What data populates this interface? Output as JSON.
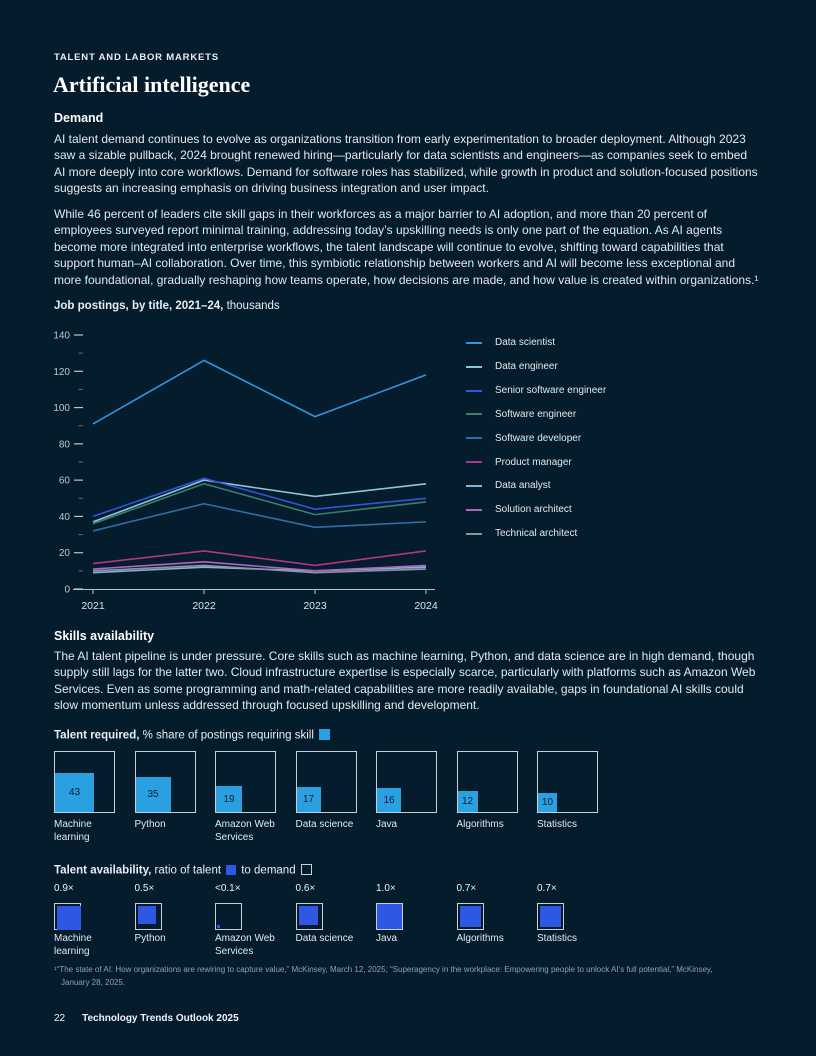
{
  "page": {
    "eyebrow": "TALENT AND LABOR MARKETS",
    "title": "Artificial intelligence",
    "footnote": "¹“The state of AI: How organizations are rewiring to capture value,” McKinsey, March 12, 2025; “Superagency in the workplace: Empowering people to unlock AI’s full potential,” McKinsey, January 28, 2025.",
    "footer_page": "22",
    "footer_title": "Technology Trends Outlook 2025"
  },
  "demand": {
    "heading": "Demand",
    "p1": "AI talent demand continues to evolve as organizations transition from early experimentation to broader deployment. Although 2023 saw a sizable pullback, 2024 brought renewed hiring—particularly for data scientists and engineers—as companies seek to embed AI more deeply into core workflows. Demand for software roles has stabilized, while growth in product and solution-focused positions suggests an increasing emphasis on driving business integration and user impact.",
    "p2": "While 46 percent of leaders cite skill gaps in their workforces as a major barrier to AI adoption, and more than 20 percent of employees surveyed report minimal training, addressing today’s upskilling needs is only one part of the equation. As AI agents become more integrated into enterprise workflows, the talent landscape will continue to evolve, shifting toward capabilities that support human–AI collaboration. Over time, this symbiotic relationship between workers and AI will become less exceptional and more foundational, gradually reshaping how teams operate, how decisions are made, and how value is created within organizations.¹"
  },
  "skills": {
    "heading": "Skills availability",
    "p": "The AI talent pipeline is under pressure. Core skills such as machine learning, Python, and data science are in high demand, though supply still lags for the latter two. Cloud infrastructure expertise is especially scarce, particularly with platforms such as Amazon Web Services. Even as some programming and math-related capabilities are more readily available, gaps in foundational AI skills could slow momentum unless addressed through focused upskilling and development."
  },
  "required_header": {
    "bold": "Talent required,",
    "rest": " % share of postings requiring skill"
  },
  "availability_header": {
    "bold": "Talent availability,",
    "mid": " ratio of talent",
    "end": " to demand"
  },
  "chart_data": [
    {
      "type": "line",
      "title_bold": "Job postings, by title, 2021–24,",
      "title_rest": " thousands",
      "x": [
        2021,
        2022,
        2023,
        2024
      ],
      "ylim": [
        0,
        140
      ],
      "y_major_ticks": [
        0,
        20,
        40,
        60,
        80,
        100,
        120,
        140
      ],
      "grid": false,
      "legend_position": "right",
      "series": [
        {
          "name": "Data scientist",
          "color": "#2E97E4",
          "values": [
            91,
            126,
            95,
            118
          ]
        },
        {
          "name": "Data engineer",
          "color": "#8FC6D6",
          "values": [
            37,
            60,
            51,
            58
          ]
        },
        {
          "name": "Senior software engineer",
          "color": "#2F55DE",
          "values": [
            40,
            61,
            44,
            50
          ]
        },
        {
          "name": "Software engineer",
          "color": "#37806F",
          "values": [
            36,
            58,
            41,
            48
          ]
        },
        {
          "name": "Software developer",
          "color": "#2E6FA8",
          "values": [
            32,
            47,
            34,
            37
          ]
        },
        {
          "name": "Product manager",
          "color": "#B13687",
          "values": [
            14,
            21,
            13,
            21
          ]
        },
        {
          "name": "Data analyst",
          "color": "#7FB4DB",
          "values": [
            9,
            12,
            10,
            12
          ]
        },
        {
          "name": "Solution architect",
          "color": "#B263C6",
          "values": [
            11,
            15,
            10,
            13
          ]
        },
        {
          "name": "Technical architect",
          "color": "#8C959C",
          "values": [
            10,
            13,
            9,
            11
          ]
        }
      ]
    },
    {
      "type": "bar",
      "title": "Talent required, % share of postings requiring skill",
      "categories": [
        "Machine learning",
        "Python",
        "Amazon Web Services",
        "Data science",
        "Java",
        "Algorithms",
        "Statistics"
      ],
      "values": [
        43,
        35,
        19,
        17,
        16,
        12,
        10
      ]
    },
    {
      "type": "bar",
      "title": "Talent availability, ratio of talent to demand",
      "categories": [
        "Machine learning",
        "Python",
        "Amazon Web Services",
        "Data science",
        "Java",
        "Algorithms",
        "Statistics"
      ],
      "value_labels": [
        "0.9×",
        "0.5×",
        "<0.1×",
        "0.6×",
        "1.0×",
        "0.7×",
        "0.7×"
      ],
      "values": [
        0.9,
        0.5,
        0.05,
        0.6,
        1.0,
        0.7,
        0.7
      ]
    }
  ],
  "colors": {
    "background": "#051C2C",
    "required_bar": "#2AA0E0",
    "availability_fill": "#2E57E3",
    "box_border": "#C7D0D6",
    "axis_line": "#B9C3CA",
    "axis_label": "#BCC7CF",
    "x_label": "#DEE5EA",
    "minor_tick": "#5E6B76",
    "bar_value_text": "#06212F"
  }
}
